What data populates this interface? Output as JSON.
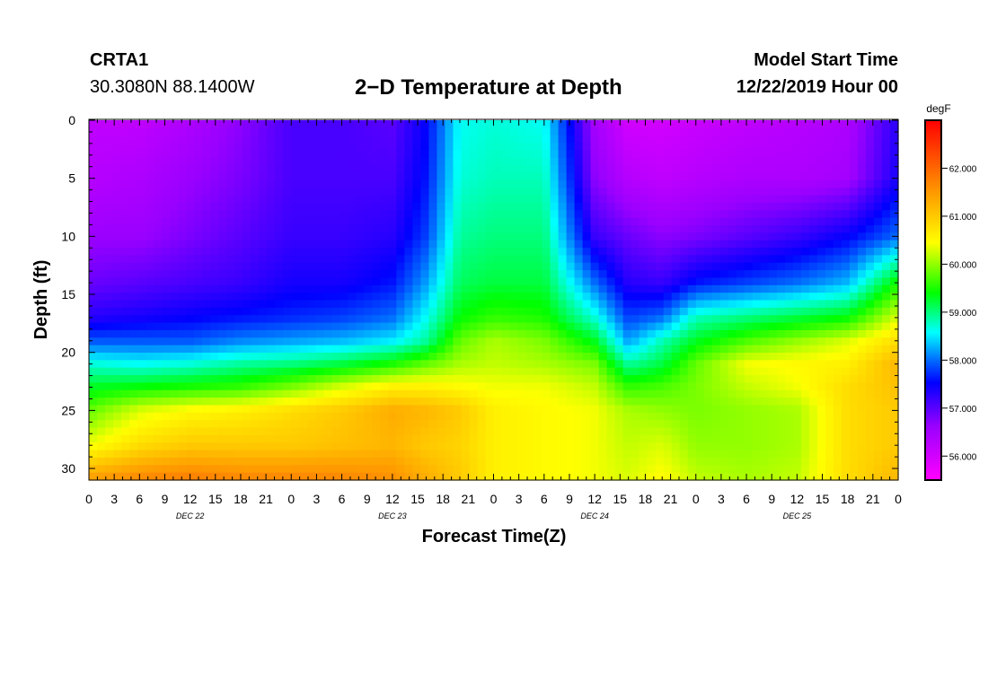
{
  "header": {
    "station": "CRTA1",
    "coords": "30.3080N 88.1400W",
    "title": "2−D Temperature at Depth",
    "model_start_label": "Model Start Time",
    "model_start_value": "12/22/2019 Hour 00"
  },
  "colorbar": {
    "unit": "degF",
    "tick_labels": [
      "62.000",
      "61.000",
      "60.000",
      "59.000",
      "58.000",
      "57.000",
      "56.000"
    ],
    "tick_values": [
      62,
      61,
      60,
      59,
      58,
      57,
      56
    ],
    "range": [
      55.5,
      63.0
    ],
    "stops": [
      {
        "t": 0.0,
        "color": "#ff00ff"
      },
      {
        "t": 0.15,
        "color": "#9900ff"
      },
      {
        "t": 0.27,
        "color": "#0000ff"
      },
      {
        "t": 0.33,
        "color": "#0066ff"
      },
      {
        "t": 0.41,
        "color": "#00ffff"
      },
      {
        "t": 0.52,
        "color": "#00ff00"
      },
      {
        "t": 0.66,
        "color": "#ffff00"
      },
      {
        "t": 0.8,
        "color": "#ff9900"
      },
      {
        "t": 1.0,
        "color": "#ff0000"
      }
    ]
  },
  "chart_data": {
    "type": "heatmap",
    "title": "2−D Temperature at Depth",
    "xlabel": "Forecast Time(Z)",
    "ylabel": "Depth (ft)",
    "x_tick_labels": [
      "0",
      "3",
      "6",
      "9",
      "12",
      "15",
      "18",
      "21",
      "0",
      "3",
      "6",
      "9",
      "12",
      "15",
      "18",
      "21",
      "0",
      "3",
      "6",
      "9",
      "12",
      "15",
      "18",
      "21",
      "0",
      "3",
      "6",
      "9",
      "12",
      "15",
      "18",
      "21",
      "0"
    ],
    "date_labels": [
      "DEC 22",
      "DEC 23",
      "DEC 24",
      "DEC 25"
    ],
    "y_ticks": [
      0,
      5,
      10,
      15,
      20,
      25,
      30
    ],
    "ylim": [
      0,
      31
    ],
    "xlim_hours": [
      0,
      96
    ],
    "units": "degF",
    "x_hours": [
      0,
      6,
      12,
      18,
      24,
      30,
      36,
      40,
      44,
      48,
      54,
      60,
      64,
      68,
      72,
      78,
      84,
      90,
      96
    ],
    "depths": [
      0,
      5,
      10,
      14,
      17,
      19,
      21,
      23,
      25,
      28,
      31
    ],
    "values": [
      [
        56.2,
        56.3,
        56.6,
        56.9,
        57.3,
        57.9,
        58.7,
        59.3,
        59.8,
        60.4,
        61.5
      ],
      [
        56.2,
        56.4,
        56.6,
        57.0,
        57.4,
        57.9,
        58.6,
        59.4,
        60.3,
        60.8,
        61.7
      ],
      [
        56.4,
        56.6,
        56.8,
        57.1,
        57.5,
        57.9,
        58.7,
        59.5,
        60.5,
        61.0,
        61.8
      ],
      [
        56.7,
        56.8,
        57.0,
        57.2,
        57.6,
        58.1,
        58.9,
        59.6,
        60.6,
        61.0,
        61.7
      ],
      [
        57.1,
        57.1,
        57.2,
        57.4,
        57.7,
        58.2,
        59.0,
        59.9,
        60.8,
        61.0,
        61.7
      ],
      [
        57.1,
        57.1,
        57.2,
        57.4,
        57.8,
        58.3,
        59.2,
        60.3,
        61.0,
        61.1,
        61.7
      ],
      [
        57.0,
        57.1,
        57.3,
        57.6,
        58.0,
        58.5,
        59.5,
        60.6,
        61.3,
        61.2,
        61.6
      ],
      [
        57.5,
        57.6,
        57.8,
        58.2,
        58.6,
        58.9,
        59.8,
        60.6,
        61.2,
        61.0,
        61.3
      ],
      [
        58.6,
        58.7,
        58.9,
        59.1,
        59.4,
        59.8,
        60.1,
        60.5,
        61.0,
        60.9,
        61.0
      ],
      [
        58.7,
        58.8,
        59.0,
        59.2,
        59.6,
        60.1,
        60.2,
        60.4,
        60.6,
        60.6,
        60.6
      ],
      [
        58.6,
        58.8,
        59.0,
        59.2,
        59.5,
        59.9,
        60.1,
        60.4,
        60.5,
        60.5,
        60.5
      ],
      [
        56.5,
        56.7,
        57.2,
        58.0,
        58.7,
        59.3,
        59.9,
        60.2,
        60.4,
        60.4,
        60.4
      ],
      [
        56.0,
        56.3,
        56.9,
        57.3,
        57.8,
        58.2,
        58.9,
        59.6,
        60.1,
        60.2,
        60.3
      ],
      [
        56.0,
        56.2,
        56.7,
        57.2,
        58.0,
        58.8,
        59.2,
        59.7,
        60.0,
        60.3,
        60.5
      ],
      [
        56.1,
        56.3,
        56.8,
        57.6,
        58.8,
        59.3,
        59.8,
        59.9,
        59.9,
        60.0,
        60.2
      ],
      [
        56.2,
        56.4,
        57.0,
        57.8,
        59.0,
        59.7,
        60.4,
        60.2,
        60.0,
        60.0,
        60.1
      ],
      [
        56.3,
        56.4,
        57.2,
        58.0,
        59.2,
        60.0,
        60.5,
        60.4,
        60.1,
        60.1,
        60.2
      ],
      [
        56.4,
        56.5,
        57.5,
        58.3,
        59.4,
        60.3,
        60.6,
        60.8,
        60.8,
        60.8,
        60.8
      ],
      [
        57.3,
        57.4,
        58.0,
        59.5,
        60.3,
        60.8,
        61.2,
        61.1,
        61.0,
        61.0,
        61.2
      ]
    ]
  }
}
